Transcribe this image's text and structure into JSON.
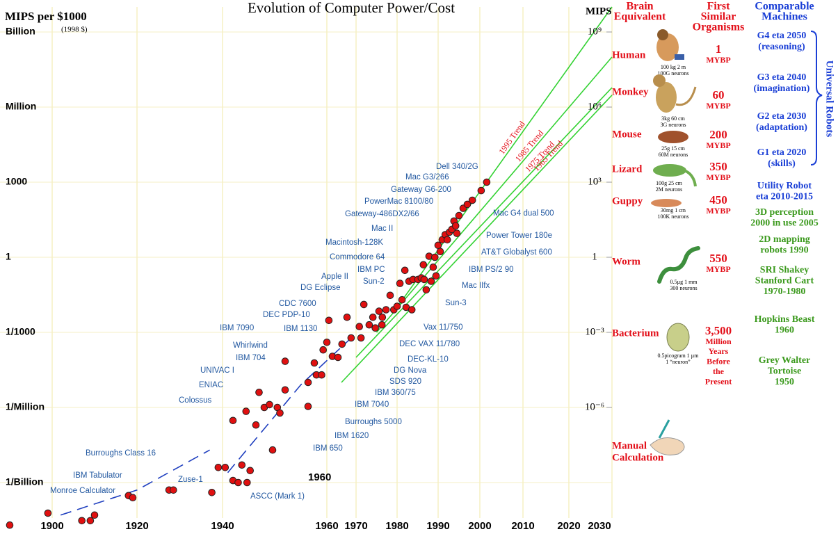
{
  "chart_data": {
    "type": "scatter",
    "title": "Evolution of Computer Power/Cost",
    "y_label": "MIPS per $1000",
    "y_sublabel": "(1998 $)",
    "y2_label": "MIPS",
    "log_scale": true,
    "grid": true,
    "color": "#e01010",
    "annotation_color": "#2258a0",
    "trend_color": "#33d233",
    "xlim": [
      1888,
      2030
    ],
    "xticks": [
      1900,
      1920,
      1940,
      1960,
      1970,
      1980,
      1990,
      2000,
      2010,
      2020,
      2030
    ],
    "ylim": [
      1e-11,
      10000000000.0
    ],
    "yticks": [
      {
        "value": 1000000000.0,
        "label": "Billion"
      },
      {
        "value": 1000000.0,
        "label": "Million"
      },
      1000,
      1,
      {
        "value": 0.001,
        "label": "1/1000"
      },
      {
        "value": 1e-06,
        "label": "1/Million"
      },
      {
        "value": 1e-09,
        "label": "1/Billion"
      }
    ],
    "y2lim": [
      1e-11,
      10000000000.0
    ],
    "y2ticks": [
      {
        "value": 1000000000.0,
        "label": "10⁹"
      },
      {
        "value": 1000000.0,
        "label": "10⁶"
      },
      {
        "value": 1000,
        "label": "10³"
      },
      1,
      {
        "value": 0.001,
        "label": "10⁻³"
      },
      {
        "value": 1e-06,
        "label": "10⁻⁶"
      }
    ],
    "x": [
      1890,
      1899,
      1907,
      1909,
      1910,
      1918,
      1919,
      1927.5,
      1928.5,
      1937.5,
      1939,
      1940.5,
      1942,
      1943,
      1943.7,
      1944.7,
      1945.3,
      1942,
      1944.5,
      1946.4,
      1947,
      1948,
      1949,
      1949.6,
      1950.5,
      1951,
      1952,
      1956.4,
      1952,
      1956.4,
      1958,
      1959,
      1957.6,
      1959.3,
      1960,
      1960.7,
      1961.9,
      1963.8,
      1965.2,
      1966.9,
      1968.3,
      1970.8,
      1971.2,
      1971.9,
      1973.2,
      1974.1,
      1974.7,
      1975.6,
      1976.3,
      1976.4,
      1977.3,
      1978.3,
      1979.2,
      1980,
      1980.7,
      1981.2,
      1981.9,
      1982.2,
      1982.9,
      1983.6,
      1983.9,
      1985.1,
      1985.9,
      1986.4,
      1986.6,
      1987.1,
      1987.8,
      1988.3,
      1988.8,
      1989.2,
      1989.5,
      1990,
      1990.5,
      1991,
      1991.7,
      1992.2,
      1992.7,
      1993.3,
      1993.8,
      1994.2,
      1994.5,
      1995,
      1996,
      1997,
      1998.2,
      2000.3,
      2001.6
    ],
    "values": [
      2e-11,
      6e-11,
      3e-11,
      3e-11,
      5e-11,
      3e-10,
      2.5e-10,
      5e-10,
      5e-10,
      4e-10,
      4e-09,
      4e-09,
      1.2e-09,
      1e-09,
      5e-09,
      1e-09,
      3e-09,
      3e-07,
      7e-07,
      2e-07,
      4e-06,
      1e-06,
      1.3e-06,
      2e-08,
      1e-06,
      6e-07,
      5e-06,
      1.1e-06,
      7e-05,
      1e-05,
      2e-05,
      2e-05,
      6e-05,
      0.0002,
      0.0004,
      0.003,
      0.00011,
      0.0001,
      0.00034,
      0.004,
      0.0006,
      0.0017,
      0.0006,
      0.013,
      0.002,
      0.004,
      0.0015,
      0.007,
      0.002,
      0.004,
      0.008,
      0.03,
      0.008,
      0.011,
      0.09,
      0.02,
      0.3,
      0.01,
      0.11,
      0.008,
      0.13,
      0.13,
      0.15,
      0.5,
      0.13,
      0.05,
      1.1,
      0.11,
      0.4,
      1,
      0.18,
      3,
      1.7,
      5,
      8,
      5,
      10,
      13,
      28,
      18,
      9,
      46,
      90,
      130,
      190,
      460,
      1000
    ],
    "fit": {
      "color": "#1f3fbf",
      "x": [
        1902,
        1920,
        1937,
        1939,
        1941,
        1955,
        1970
      ],
      "values": [
        5e-11,
        5e-10,
        2e-08,
        null,
        2.5e-09,
        8e-06,
        0.0009
      ]
    },
    "trends": [
      {
        "name": "1995 Trend",
        "x": [
          1980,
          2030
        ],
        "values": [
          0.01,
          10000000000.0
        ]
      },
      {
        "name": "1985 Trend",
        "x": [
          1975,
          2030
        ],
        "values": [
          0.001,
          100000000.0
        ]
      },
      {
        "name": "1975 Trend",
        "x": [
          1970,
          2030
        ],
        "values": [
          0.0001,
          6000000.0
        ]
      },
      {
        "name": "1965 Trend",
        "x": [
          1965,
          2030
        ],
        "values": [
          1e-05,
          3000000.0
        ]
      }
    ],
    "year_marker": "1960",
    "annotations": [
      "Dell 340/2G",
      "Mac G3/266",
      "Gateway G6-200",
      "PowerMac 8100/80",
      "Gateway-486DX2/66",
      "Mac II",
      "Macintosh-128K",
      "Commodore 64",
      "Apple II",
      "IBM PC",
      "Sun-2",
      "DG Eclipse",
      "CDC 7600",
      "DEC PDP-10",
      "IBM 7090",
      "IBM 1130",
      "Whirlwind",
      "IBM 704",
      "UNIVAC I",
      "ENIAC",
      "Colossus",
      "Burroughs Class 16",
      "IBM Tabulator",
      "Monroe Calculator",
      "Zuse-1",
      "ASCC (Mark 1)",
      "Mac G4 dual 500",
      "Power Tower 180e",
      "AT&T Globalyst 600",
      "IBM PS/2 90",
      "Mac IIfx",
      "Sun-3",
      "Vax 11/750",
      "DEC VAX 11/780",
      "DEC-KL-10",
      "DG Nova",
      "SDS 920",
      "IBM 360/75",
      "IBM 7040",
      "Burroughs 5000",
      "IBM 1620",
      "IBM 650"
    ]
  },
  "side_panel": {
    "brain_header": [
      "Brain",
      "Equivalent"
    ],
    "organism_header": [
      "First",
      "Similar",
      "Organisms"
    ],
    "machine_header": [
      "Comparable",
      "Machines"
    ],
    "brains": [
      {
        "name": [
          "Human"
        ],
        "caption": [
          "100 kg   2 m",
          "100G neurons"
        ],
        "age": [
          "1",
          "MYBP"
        ]
      },
      {
        "name": [
          "Monkey"
        ],
        "caption": [
          "3kg  60 cm",
          "3G neurons"
        ],
        "age": [
          "60",
          "MYBP"
        ]
      },
      {
        "name": [
          "Mouse"
        ],
        "caption": [
          "25g   15 cm",
          "60M neurons"
        ],
        "age": [
          "200",
          "MYBP"
        ]
      },
      {
        "name": [
          "Lizard"
        ],
        "caption": [
          "100g  25 cm",
          "2M neurons"
        ],
        "age": [
          "350",
          "MYBP"
        ]
      },
      {
        "name": [
          "Guppy"
        ],
        "caption": [
          "30mg   1 cm",
          "100K neurons"
        ],
        "age": [
          "450",
          "MYBP"
        ]
      },
      {
        "name": [
          "Worm"
        ],
        "caption": [
          "0.5µg  1 mm",
          "300 neurons"
        ],
        "age": [
          "550",
          "MYBP"
        ]
      },
      {
        "name": [
          "Bacterium"
        ],
        "caption": [
          "0.5picogram 1 µm",
          "1 “neuron”"
        ],
        "age": [
          "3,500",
          "Million",
          "Years",
          "Before",
          "the",
          "Present"
        ]
      },
      {
        "name": [
          "Manual",
          "Calculation"
        ]
      }
    ],
    "universal_robots": "Universal Robots",
    "robots_color": "#1a3fd6",
    "robots": [
      [
        "G4 eta 2050",
        "(reasoning)"
      ],
      [
        "G3 eta 2040",
        "(imagination)"
      ],
      [
        "G2 eta 2030",
        "(adaptation)"
      ],
      [
        "G1 eta 2020",
        "(skills)"
      ]
    ],
    "machines": [
      {
        "lines": [
          "Utility Robot",
          "eta 2010-2015"
        ],
        "color": "#1a3fd6"
      },
      {
        "lines": [
          "3D perception",
          "2000 in use 2005"
        ],
        "color": "#3c9a1e"
      },
      {
        "lines": [
          "2D mapping",
          "robots 1990"
        ],
        "color": "#3c9a1e"
      },
      {
        "lines": [
          "SRI Shakey",
          "Stanford Cart",
          "1970-1980"
        ],
        "color": "#3c9a1e"
      },
      {
        "lines": [
          "Hopkins Beast",
          "1960"
        ],
        "color": "#3c9a1e"
      },
      {
        "lines": [
          "Grey Walter",
          "Tortoise",
          "1950"
        ],
        "color": "#3c9a1e"
      }
    ]
  }
}
